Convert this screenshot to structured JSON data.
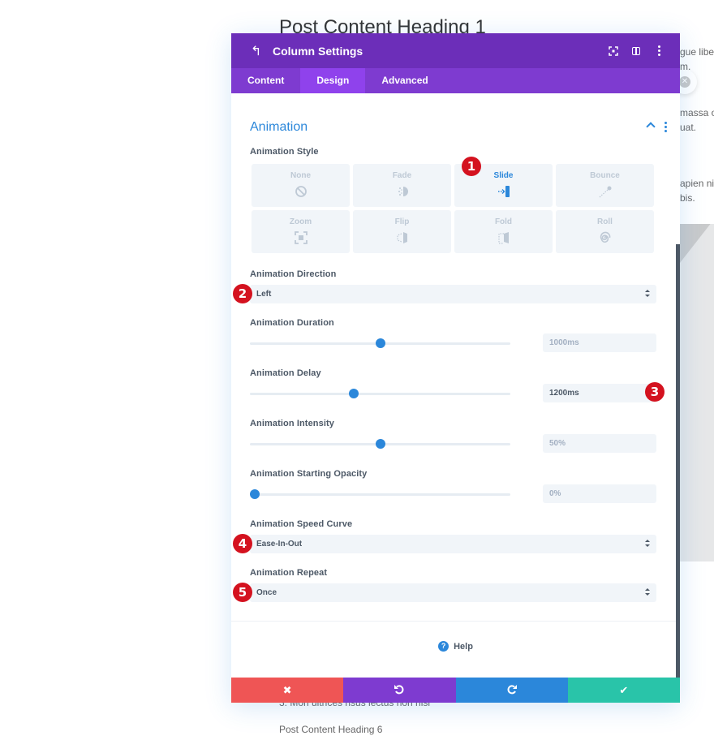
{
  "background": {
    "heading": "Post Content Heading 1",
    "snippets": [
      "gue libero",
      "m.",
      "massa orc",
      "uat.",
      "apien nisl",
      "bis."
    ],
    "footer_line": "3. Mori ultrices risus lectus non nisi",
    "footer_heading": "Post Content Heading 6"
  },
  "modal": {
    "title": "Column Settings",
    "header_icons": [
      "back-icon",
      "expand-icon",
      "split-view-icon",
      "more-icon"
    ],
    "tabs": [
      {
        "label": "Content",
        "active": false
      },
      {
        "label": "Design",
        "active": true
      },
      {
        "label": "Advanced",
        "active": false
      }
    ],
    "section_title": "Animation",
    "animation_style": {
      "label": "Animation Style",
      "options": [
        {
          "name": "None",
          "icon": "none-icon",
          "selected": false
        },
        {
          "name": "Fade",
          "icon": "fade-icon",
          "selected": false
        },
        {
          "name": "Slide",
          "icon": "slide-icon",
          "selected": true
        },
        {
          "name": "Bounce",
          "icon": "bounce-icon",
          "selected": false
        },
        {
          "name": "Zoom",
          "icon": "zoom-icon",
          "selected": false
        },
        {
          "name": "Flip",
          "icon": "flip-icon",
          "selected": false
        },
        {
          "name": "Fold",
          "icon": "fold-icon",
          "selected": false
        },
        {
          "name": "Roll",
          "icon": "roll-icon",
          "selected": false
        }
      ]
    },
    "direction": {
      "label": "Animation Direction",
      "value": "Left"
    },
    "duration": {
      "label": "Animation Duration",
      "value": "1000ms",
      "slider_fraction": 0.5
    },
    "delay": {
      "label": "Animation Delay",
      "value": "1200ms",
      "slider_fraction": 0.4
    },
    "intensity": {
      "label": "Animation Intensity",
      "value": "50%",
      "slider_fraction": 0.5
    },
    "opacity": {
      "label": "Animation Starting Opacity",
      "value": "0%",
      "slider_fraction": 0.0
    },
    "speed_curve": {
      "label": "Animation Speed Curve",
      "value": "Ease-In-Out"
    },
    "repeat": {
      "label": "Animation Repeat",
      "value": "Once"
    },
    "help_label": "Help",
    "footer_buttons": [
      "cancel-icon",
      "undo-icon",
      "redo-icon",
      "save-icon"
    ]
  },
  "callouts": [
    "1",
    "2",
    "3",
    "4",
    "5"
  ],
  "colors": {
    "header": "#6c2eb9",
    "tabs": "#7e3bd0",
    "tab_active": "#8f42ec",
    "accent": "#2b87da",
    "cancel": "#ef5555",
    "undo": "#7e3bd0",
    "redo": "#2b87da",
    "save": "#29c4a9",
    "callout": "#d4121f"
  }
}
